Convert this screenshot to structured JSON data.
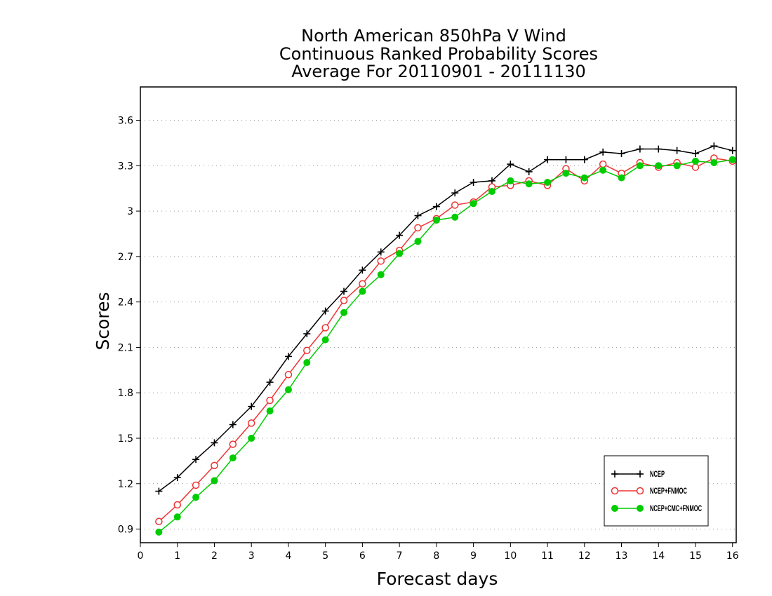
{
  "chart_data": {
    "type": "line",
    "title": [
      "North American 850hPa V Wind",
      "Continuous Ranked Probability Scores",
      "Average For 20110901 - 20111130"
    ],
    "xlabel": "Forecast days",
    "ylabel": "Scores",
    "xlim": [
      0,
      16.1
    ],
    "ylim": [
      0.81,
      3.82
    ],
    "x_ticks": [
      0,
      1,
      2,
      3,
      4,
      5,
      6,
      7,
      8,
      9,
      10,
      11,
      12,
      13,
      14,
      15,
      16
    ],
    "x_tick_labels": [
      "0",
      "1",
      "2",
      "3",
      "4",
      "5",
      "6",
      "7",
      "8",
      "9",
      "10",
      "11",
      "12",
      "13",
      "14",
      "15",
      "16"
    ],
    "y_ticks": [
      0.9,
      1.2,
      1.5,
      1.8,
      2.1,
      2.4,
      2.7,
      3.0,
      3.3,
      3.6
    ],
    "y_tick_labels": [
      "0.9",
      "1.2",
      "1.5",
      "1.8",
      "2.1",
      "2.4",
      "2.7",
      "3",
      "3.3",
      "3.6"
    ],
    "grid": "horizontal dotted",
    "legend_position": "bottom-right",
    "x": [
      0.5,
      1,
      1.5,
      2,
      2.5,
      3,
      3.5,
      4,
      4.5,
      5,
      5.5,
      6,
      6.5,
      7,
      7.5,
      8,
      8.5,
      9,
      9.5,
      10,
      10.5,
      11,
      11.5,
      12,
      12.5,
      13,
      13.5,
      14,
      14.5,
      15,
      15.5,
      16
    ],
    "series": [
      {
        "name": "NCEP",
        "color": "#000000",
        "marker": "plus",
        "values": [
          1.15,
          1.24,
          1.36,
          1.47,
          1.59,
          1.71,
          1.87,
          2.04,
          2.19,
          2.34,
          2.47,
          2.61,
          2.73,
          2.84,
          2.97,
          3.03,
          3.12,
          3.19,
          3.2,
          3.31,
          3.26,
          3.34,
          3.34,
          3.34,
          3.39,
          3.38,
          3.41,
          3.41,
          3.4,
          3.38,
          3.43,
          3.4
        ]
      },
      {
        "name": "NCEP+FNMOC",
        "color": "#ee3333",
        "marker": "open-circle",
        "values": [
          0.95,
          1.06,
          1.19,
          1.32,
          1.46,
          1.6,
          1.75,
          1.92,
          2.08,
          2.23,
          2.41,
          2.52,
          2.67,
          2.74,
          2.89,
          2.95,
          3.04,
          3.06,
          3.16,
          3.17,
          3.2,
          3.17,
          3.28,
          3.2,
          3.31,
          3.25,
          3.32,
          3.29,
          3.32,
          3.29,
          3.35,
          3.33
        ]
      },
      {
        "name": "NCEP+CMC+FNMOC",
        "color": "#00cc00",
        "marker": "filled-circle",
        "values": [
          0.88,
          0.98,
          1.11,
          1.22,
          1.37,
          1.5,
          1.68,
          1.82,
          2.0,
          2.15,
          2.33,
          2.47,
          2.58,
          2.72,
          2.8,
          2.94,
          2.96,
          3.05,
          3.13,
          3.2,
          3.18,
          3.19,
          3.25,
          3.22,
          3.27,
          3.22,
          3.3,
          3.3,
          3.3,
          3.33,
          3.32,
          3.34
        ]
      }
    ]
  }
}
